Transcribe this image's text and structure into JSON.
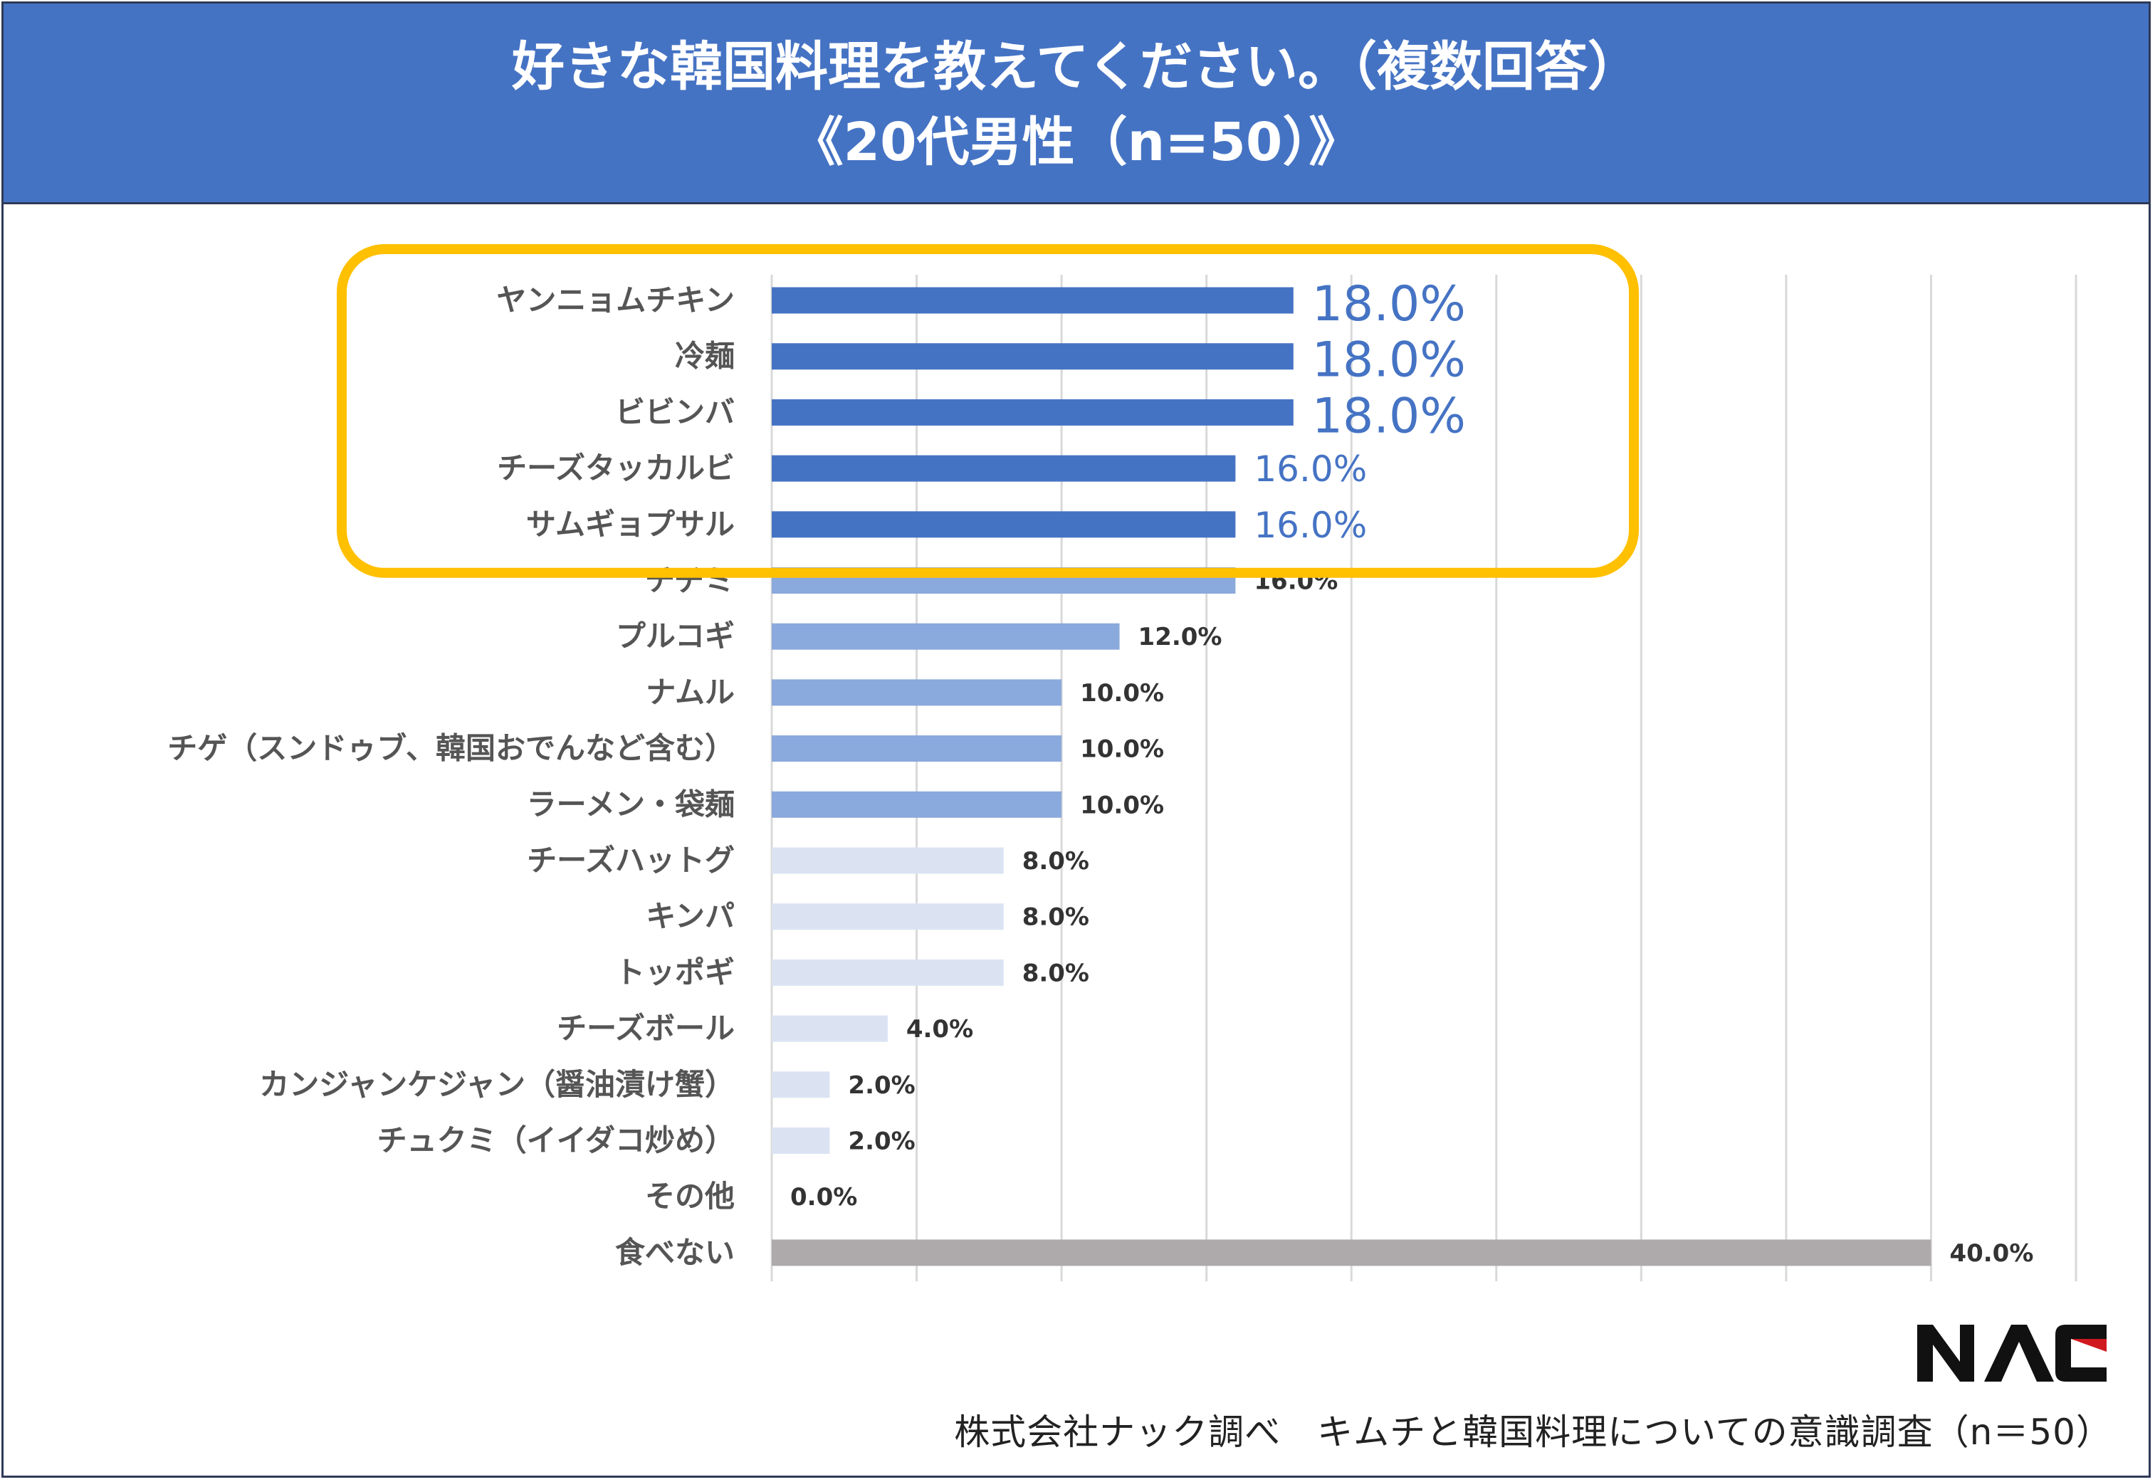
{
  "header": {
    "title_line1": "好きな韓国料理を教えてください。（複数回答）",
    "title_line2": "《20代男性（n=50）》"
  },
  "chart_data": {
    "type": "bar",
    "orientation": "horizontal",
    "title": "好きな韓国料理を教えてください。（複数回答）《20代男性（n=50）》",
    "unit": "%",
    "xlim": [
      0,
      45
    ],
    "grid": true,
    "categories": [
      "ヤンニョムチキン",
      "冷麺",
      "ビビンバ",
      "チーズタッカルビ",
      "サムギョプサル",
      "チヂミ",
      "プルコギ",
      "ナムル",
      "チゲ（スンドゥブ、韓国おでんなど含む）",
      "ラーメン・袋麺",
      "チーズハットグ",
      "キンパ",
      "トッポギ",
      "チーズボール",
      "カンジャンケジャン（醤油漬け蟹）",
      "チュクミ（イイダコ炒め）",
      "その他",
      "食べない"
    ],
    "values": [
      18.0,
      18.0,
      18.0,
      16.0,
      16.0,
      16.0,
      12.0,
      10.0,
      10.0,
      10.0,
      8.0,
      8.0,
      8.0,
      4.0,
      2.0,
      2.0,
      0.0,
      40.0
    ],
    "value_labels": [
      "18.0%",
      "18.0%",
      "18.0%",
      "16.0%",
      "16.0%",
      "16.0%",
      "12.0%",
      "10.0%",
      "10.0%",
      "10.0%",
      "8.0%",
      "8.0%",
      "8.0%",
      "4.0%",
      "2.0%",
      "2.0%",
      "0.0%",
      "40.0%"
    ],
    "highlighted_top": 5,
    "colors": {
      "top": "#4573c4",
      "mid": "#8aa9dc",
      "low": "#dbe3f3",
      "none": "#aeaaab",
      "highlight_box": "#ffc000",
      "grid": "#d9d9d9"
    }
  },
  "logo_text": "NAC",
  "footer": {
    "source": "株式会社ナック調べ　キムチと韓国料理についての意識調査（n＝50）"
  }
}
